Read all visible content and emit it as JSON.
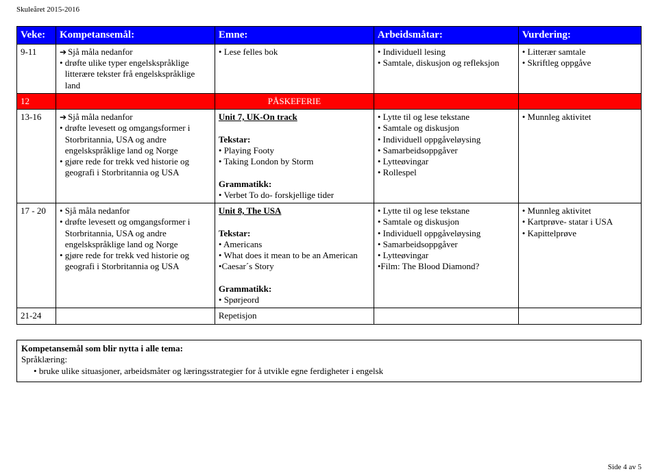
{
  "header_small": "Skuleåret 2015-2016",
  "columns": {
    "veke": "Veke:",
    "komp": "Kompetansemål:",
    "emne": "Emne:",
    "arb": "Arbeidsmåtar:",
    "vurd": "Vurdering:"
  },
  "row1": {
    "veke": "9-11",
    "komp_arrow": "Sjå måla nedanfor",
    "komp_items": [
      "drøfte ulike typer engelskspråklige litterære tekster frå engelskspråklige land"
    ],
    "emne_items": [
      "Lese felles bok"
    ],
    "arb_items": [
      "Individuell lesing",
      "Samtale, diskusjon og refleksjon"
    ],
    "vurd_items": [
      "Litterær samtale",
      "Skriftleg oppgåve"
    ]
  },
  "redrow": {
    "veke": "12",
    "label": "PÅSKEFERIE"
  },
  "row2": {
    "veke": "13-16",
    "komp_arrow": "Sjå måla nedanfor",
    "komp_items": [
      "drøfte levesett og omgangsformer i Storbritannia, USA  og andre engelskspråklige land og Norge",
      "gjøre rede for trekk ved historie og geografi i Storbritannia og USA"
    ],
    "emne_title": "Unit 7, UK-On track",
    "emne_tekstar_label": "Tekstar:",
    "emne_tekstar": [
      "Playing Footy",
      "Taking London by Storm"
    ],
    "emne_gram_label": "Grammatikk:",
    "emne_gram": [
      "Verbet To do- forskjellige tider"
    ],
    "arb_items": [
      "Lytte til  og lese tekstane",
      "Samtale og diskusjon",
      "Individuell oppgåveløysing",
      "Samarbeidsoppgåver",
      "Lytteøvingar",
      "Rollespel"
    ],
    "vurd_items": [
      "Munnleg aktivitet"
    ]
  },
  "row3": {
    "veke": "17 - 20",
    "komp_first": "Sjå måla nedanfor",
    "komp_items": [
      "drøfte levesett og omgangsformer i Storbritannia, USA  og andre engelskspråklige land og Norge",
      "gjøre rede for trekk ved historie og geografi i Storbritannia og USA"
    ],
    "emne_title": "Unit 8, The USA",
    "emne_tekstar_label": "Tekstar:",
    "emne_tekstar": [
      "Americans",
      "What does it mean to be an American"
    ],
    "emne_plain": "•Caesar´s Story",
    "emne_gram_label": "Grammatikk:",
    "emne_gram": [
      "Spørjeord"
    ],
    "arb_items": [
      "Lytte til  og lese tekstane",
      "Samtale og diskusjon",
      "Individuell oppgåveløysing",
      "Samarbeidsoppgåver",
      "Lytteøvingar"
    ],
    "arb_plain": "•Film: The Blood Diamond?",
    "vurd_items": [
      "Munnleg aktivitet",
      "Kartprøve- statar i USA",
      "Kapittelprøve"
    ]
  },
  "row4": {
    "veke": "21-24",
    "emne": "Repetisjon"
  },
  "bottom": {
    "title": "Kompetansemål som blir nytta i alle tema:",
    "sub": "Språklæring:",
    "item": "bruke ulike situasjoner, arbeidsmåter og læringsstrategier for å utvikle egne ferdigheter i engelsk"
  },
  "footer": "Side 4 av 5"
}
